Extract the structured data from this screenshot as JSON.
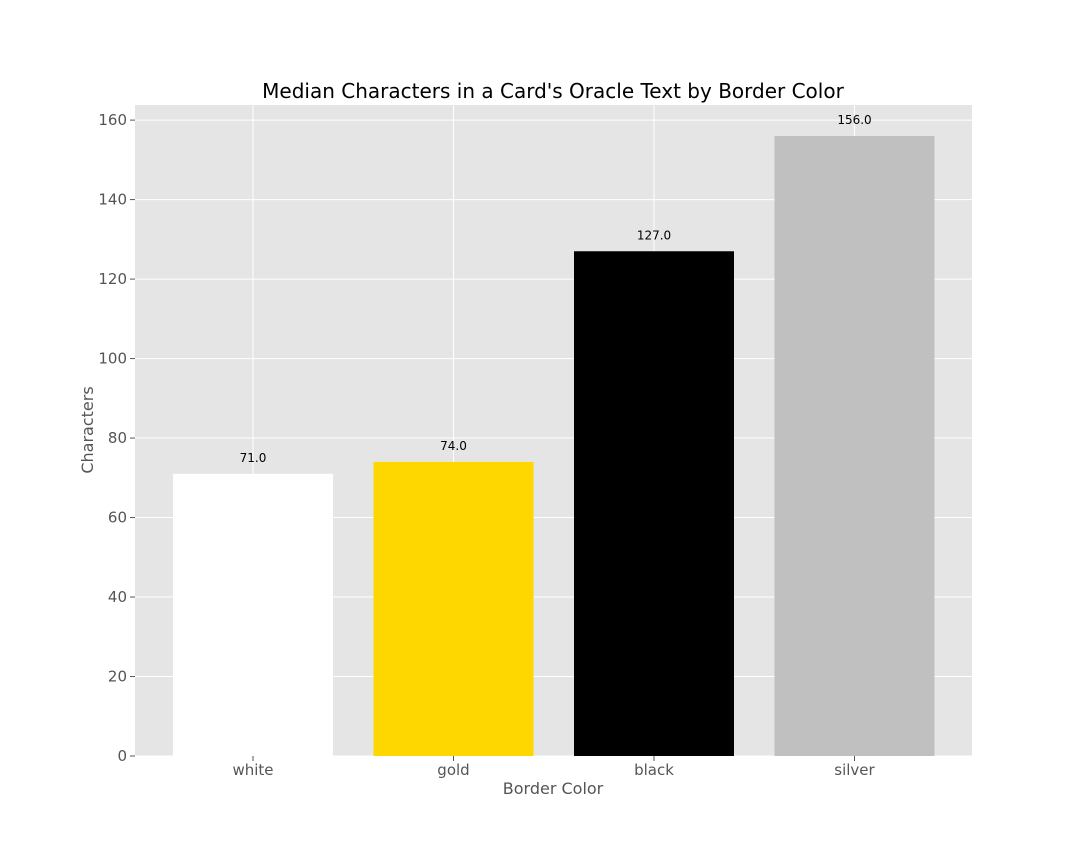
{
  "chart_data": {
    "type": "bar",
    "title": "Median Characters in a Card's Oracle Text by Border Color",
    "xlabel": "Border Color",
    "ylabel": "Characters",
    "categories": [
      "white",
      "gold",
      "black",
      "silver"
    ],
    "values": [
      71.0,
      74.0,
      127.0,
      156.0
    ],
    "value_labels": [
      "71.0",
      "74.0",
      "127.0",
      "156.0"
    ],
    "bar_colors": [
      "#ffffff",
      "#ffd700",
      "#000000",
      "#c0c0c0"
    ],
    "ylim": [
      0,
      163.8
    ],
    "yticks": [
      0,
      20,
      40,
      60,
      80,
      100,
      120,
      140,
      160
    ],
    "ytick_labels": [
      "0",
      "20",
      "40",
      "60",
      "80",
      "100",
      "120",
      "140",
      "160"
    ],
    "grid": true,
    "background_color": "#e5e5e5",
    "grid_color": "#ffffff"
  }
}
